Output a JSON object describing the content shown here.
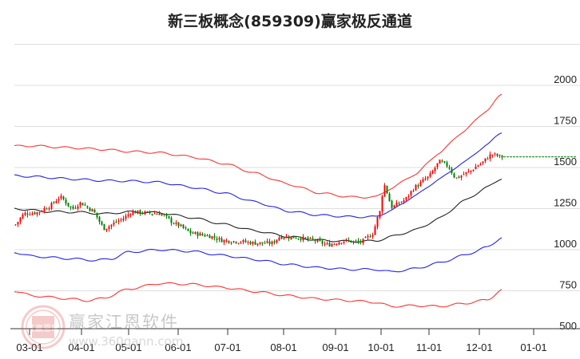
{
  "title": "新三板概念(859309)赢家极反通道",
  "watermark": {
    "brand": "赢家江恩软件",
    "url": "www.360gann.com",
    "seal": [
      "江",
      "赢",
      "恩",
      "家"
    ]
  },
  "chart_data": {
    "type": "candlestick",
    "title": "新三板概念(859309)赢家极反通道",
    "xlabel": "",
    "ylabel": "",
    "ylim": [
      500,
      2250
    ],
    "y_ticks": [
      500,
      750,
      1000,
      1250,
      1500,
      1750,
      2000
    ],
    "x_ticks": [
      "03-01",
      "04-01",
      "05-01",
      "06-01",
      "07-01",
      "08-01",
      "09-01",
      "10-01",
      "11-01",
      "12-01",
      "01-01"
    ],
    "grid": true,
    "legend": "none",
    "colors": {
      "up": "#ff0000",
      "down": "#008000",
      "outer_band": "#ff3333",
      "inner_band": "#2222ee",
      "mid_line": "#222222",
      "last_price_line": "#008000",
      "grid": "#dddddd"
    },
    "last_price": 1565,
    "series": [
      {
        "name": "外上轨 (outer upper, red)",
        "points": [
          [
            18,
            1630
          ],
          [
            40,
            1632
          ],
          [
            90,
            1620
          ],
          [
            130,
            1610
          ],
          [
            160,
            1598
          ],
          [
            200,
            1590
          ],
          [
            240,
            1565
          ],
          [
            280,
            1525
          ],
          [
            320,
            1465
          ],
          [
            360,
            1400
          ],
          [
            400,
            1345
          ],
          [
            440,
            1320
          ],
          [
            470,
            1320
          ],
          [
            490,
            1375
          ],
          [
            520,
            1460
          ],
          [
            550,
            1590
          ],
          [
            580,
            1720
          ],
          [
            610,
            1850
          ],
          [
            628,
            1945
          ]
        ]
      },
      {
        "name": "内上轨 (inner upper, blue)",
        "points": [
          [
            18,
            1450
          ],
          [
            40,
            1445
          ],
          [
            90,
            1430
          ],
          [
            130,
            1420
          ],
          [
            160,
            1418
          ],
          [
            200,
            1410
          ],
          [
            240,
            1380
          ],
          [
            280,
            1345
          ],
          [
            320,
            1290
          ],
          [
            360,
            1235
          ],
          [
            400,
            1210
          ],
          [
            440,
            1200
          ],
          [
            470,
            1200
          ],
          [
            490,
            1240
          ],
          [
            520,
            1330
          ],
          [
            550,
            1430
          ],
          [
            580,
            1530
          ],
          [
            610,
            1640
          ],
          [
            628,
            1715
          ]
        ]
      },
      {
        "name": "中轨 (middle, black)",
        "points": [
          [
            18,
            1250
          ],
          [
            60,
            1232
          ],
          [
            100,
            1228
          ],
          [
            130,
            1218
          ],
          [
            160,
            1230
          ],
          [
            200,
            1225
          ],
          [
            240,
            1195
          ],
          [
            280,
            1155
          ],
          [
            320,
            1115
          ],
          [
            360,
            1080
          ],
          [
            400,
            1058
          ],
          [
            440,
            1050
          ],
          [
            470,
            1053
          ],
          [
            490,
            1080
          ],
          [
            520,
            1120
          ],
          [
            550,
            1190
          ],
          [
            580,
            1295
          ],
          [
            610,
            1380
          ],
          [
            628,
            1435
          ]
        ]
      },
      {
        "name": "内下轨 (inner lower, blue)",
        "points": [
          [
            18,
            985
          ],
          [
            40,
            960
          ],
          [
            90,
            945
          ],
          [
            120,
            935
          ],
          [
            140,
            945
          ],
          [
            160,
            985
          ],
          [
            200,
            1000
          ],
          [
            240,
            990
          ],
          [
            280,
            965
          ],
          [
            320,
            940
          ],
          [
            360,
            910
          ],
          [
            400,
            890
          ],
          [
            440,
            880
          ],
          [
            470,
            880
          ],
          [
            490,
            865
          ],
          [
            520,
            885
          ],
          [
            550,
            920
          ],
          [
            580,
            965
          ],
          [
            610,
            1015
          ],
          [
            628,
            1075
          ]
        ]
      },
      {
        "name": "外下轨 (outer lower, red)",
        "points": [
          [
            18,
            750
          ],
          [
            40,
            720
          ],
          [
            90,
            700
          ],
          [
            110,
            690
          ],
          [
            130,
            705
          ],
          [
            160,
            760
          ],
          [
            200,
            795
          ],
          [
            240,
            790
          ],
          [
            280,
            770
          ],
          [
            320,
            745
          ],
          [
            360,
            720
          ],
          [
            400,
            700
          ],
          [
            440,
            690
          ],
          [
            470,
            680
          ],
          [
            490,
            655
          ],
          [
            520,
            660
          ],
          [
            550,
            655
          ],
          [
            580,
            672
          ],
          [
            610,
            695
          ],
          [
            628,
            755
          ]
        ]
      },
      {
        "name": "K线 close (approx)",
        "points": [
          [
            18,
            1150
          ],
          [
            30,
            1220
          ],
          [
            45,
            1225
          ],
          [
            60,
            1260
          ],
          [
            75,
            1320
          ],
          [
            90,
            1250
          ],
          [
            100,
            1285
          ],
          [
            115,
            1240
          ],
          [
            130,
            1130
          ],
          [
            150,
            1180
          ],
          [
            165,
            1230
          ],
          [
            180,
            1225
          ],
          [
            200,
            1220
          ],
          [
            220,
            1155
          ],
          [
            240,
            1100
          ],
          [
            260,
            1085
          ],
          [
            280,
            1055
          ],
          [
            300,
            1050
          ],
          [
            320,
            1040
          ],
          [
            340,
            1040
          ],
          [
            350,
            1080
          ],
          [
            370,
            1075
          ],
          [
            390,
            1060
          ],
          [
            410,
            1030
          ],
          [
            430,
            1055
          ],
          [
            450,
            1045
          ],
          [
            465,
            1090
          ],
          [
            475,
            1230
          ],
          [
            480,
            1400
          ],
          [
            490,
            1260
          ],
          [
            505,
            1300
          ],
          [
            520,
            1385
          ],
          [
            535,
            1440
          ],
          [
            550,
            1535
          ],
          [
            560,
            1510
          ],
          [
            570,
            1435
          ],
          [
            585,
            1470
          ],
          [
            600,
            1520
          ],
          [
            615,
            1580
          ],
          [
            628,
            1565
          ]
        ]
      }
    ]
  }
}
